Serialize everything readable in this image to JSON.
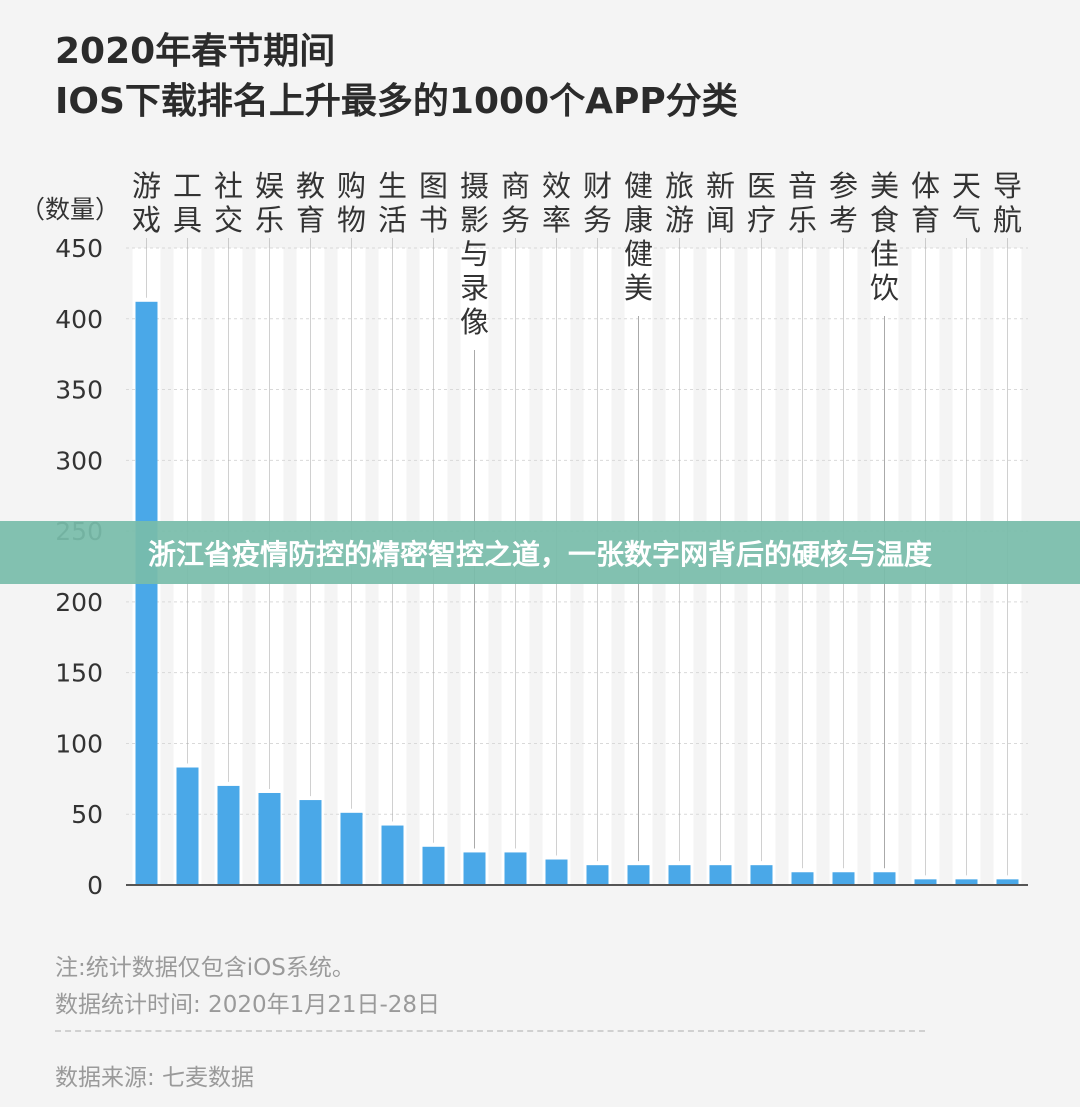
{
  "title": {
    "line1": "2020年春节期间",
    "line2": "IOS下载排名上升最多的1000个APP分类"
  },
  "overlay": {
    "text": "浙江省疫情防控的精密智控之道，一张数字网背后的硬核与温度"
  },
  "footer": {
    "note1": "注:统计数据仅包含iOS系统。",
    "note2": "数据统计时间: 2020年1月21日-28日",
    "source": "数据来源: 七麦数据"
  },
  "colors": {
    "bar": "#4aa8e8",
    "gridline": "#d9d9d9",
    "stripe": "#ffffff",
    "leader": "#aaaaaa",
    "text": "#333333"
  },
  "chart_data": {
    "type": "bar",
    "ylabel": "（数量）",
    "ylim": [
      0,
      450
    ],
    "yticks": [
      0,
      50,
      100,
      150,
      200,
      250,
      300,
      350,
      400,
      450
    ],
    "categories": [
      "游戏",
      "工具",
      "社交",
      "娱乐",
      "教育",
      "购物",
      "生活",
      "图书",
      "摄影与录像",
      "商务",
      "效率",
      "财务",
      "健康健美",
      "旅游",
      "新闻",
      "医疗",
      "音乐",
      "参考",
      "美食佳饮",
      "体育",
      "天气",
      "导航"
    ],
    "values": [
      412,
      83,
      70,
      65,
      60,
      51,
      42,
      27,
      23,
      23,
      18,
      14,
      14,
      14,
      14,
      14,
      9,
      9,
      9,
      4,
      4,
      4
    ],
    "grid": true
  }
}
